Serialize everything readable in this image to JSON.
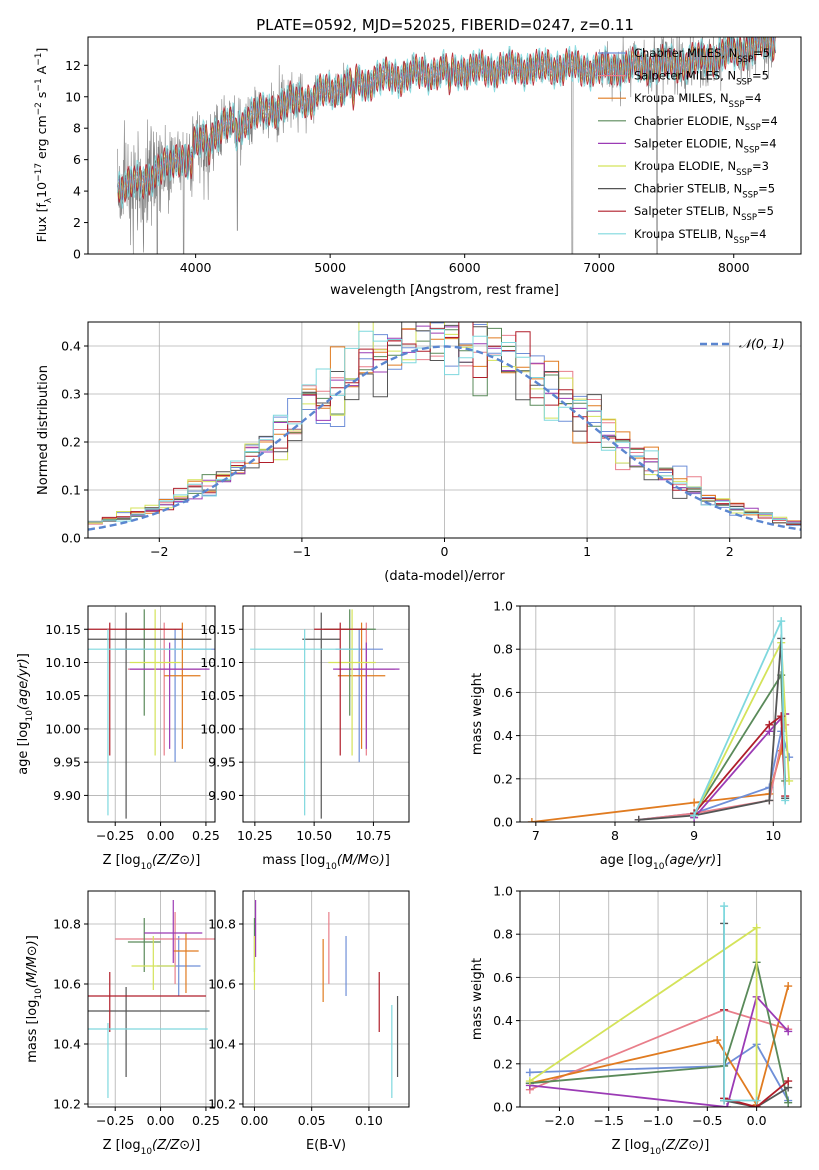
{
  "figure_title": "PLATE=0592, MJD=52025, FIBERID=0247, z=0.11",
  "colors": {
    "Chabrier MILES": "#6f8fd8",
    "Salpeter MILES": "#e87e8a",
    "Kroupa MILES": "#e07b20",
    "Chabrier ELODIE": "#5a8a5a",
    "Salpeter ELODIE": "#9b3bb5",
    "Kroupa ELODIE": "#d4e35a",
    "Chabrier STELIB": "#555555",
    "Salpeter STELIB": "#b01e2a",
    "Kroupa STELIB": "#7fd8de",
    "data": "#808080"
  },
  "chart_data": [
    {
      "id": "spectrum",
      "type": "line",
      "title": "PLATE=0592, MJD=52025, FIBERID=0247, z=0.11",
      "xlabel": "wavelength [Angstrom, rest frame]",
      "ylabel_parts": [
        "Flux [f",
        "λ",
        "10",
        "−17",
        " erg cm",
        "−2",
        " s",
        "−1",
        " A",
        "−1",
        "]"
      ],
      "xlim": [
        3200,
        8500
      ],
      "ylim": [
        0,
        13.8
      ],
      "xticks": [
        4000,
        5000,
        6000,
        7000,
        8000
      ],
      "yticks": [
        0,
        2,
        4,
        6,
        8,
        10,
        12
      ],
      "legend_position": "upper right",
      "legend": [
        {
          "model": "Chabrier MILES",
          "label": "Chabrier MILES, N",
          "sub": "SSP",
          "suffix": "=5"
        },
        {
          "model": "Salpeter MILES",
          "label": "Salpeter MILES, N",
          "sub": "SSP",
          "suffix": "=5"
        },
        {
          "model": "Kroupa MILES",
          "label": "Kroupa MILES, N",
          "sub": "SSP",
          "suffix": "=4"
        },
        {
          "model": "Chabrier ELODIE",
          "label": "Chabrier ELODIE, N",
          "sub": "SSP",
          "suffix": "=4"
        },
        {
          "model": "Salpeter ELODIE",
          "label": "Salpeter ELODIE, N",
          "sub": "SSP",
          "suffix": "=4"
        },
        {
          "model": "Kroupa ELODIE",
          "label": "Kroupa ELODIE, N",
          "sub": "SSP",
          "suffix": "=3"
        },
        {
          "model": "Chabrier STELIB",
          "label": "Chabrier STELIB, N",
          "sub": "SSP",
          "suffix": "=5"
        },
        {
          "model": "Salpeter STELIB",
          "label": "Salpeter STELIB, N",
          "sub": "SSP",
          "suffix": "=5"
        },
        {
          "model": "Kroupa STELIB",
          "label": "Kroupa STELIB, N",
          "sub": "SSP",
          "suffix": "=4"
        }
      ],
      "continuum": {
        "x": [
          3420,
          3500,
          3600,
          3700,
          3800,
          3900,
          4000,
          4100,
          4200,
          4300,
          4400,
          4500,
          4600,
          4700,
          4800,
          4900,
          5000,
          5200,
          5400,
          5600,
          5800,
          6000,
          6200,
          6400,
          6600,
          6800,
          7000,
          7200,
          7400,
          7600,
          7800,
          8000,
          8200,
          8300
        ],
        "y": [
          4.3,
          4.4,
          4.6,
          5.2,
          5.6,
          6.3,
          6.9,
          7.5,
          8.0,
          8.4,
          8.7,
          9.0,
          9.3,
          9.6,
          9.9,
          10.1,
          10.4,
          10.9,
          11.2,
          11.4,
          11.6,
          11.7,
          11.75,
          11.8,
          11.9,
          11.9,
          11.7,
          11.9,
          12.0,
          12.1,
          12.4,
          12.8,
          13.3,
          13.6
        ]
      }
    },
    {
      "id": "residuals",
      "type": "step",
      "xlabel": "(data-model)/error",
      "ylabel": "Normed distribution",
      "xlim": [
        -2.5,
        2.5
      ],
      "ylim": [
        0,
        0.45
      ],
      "xticks": [
        -2,
        -1,
        0,
        1,
        2
      ],
      "yticks": [
        0.0,
        0.1,
        0.2,
        0.3,
        0.4
      ],
      "grid": true,
      "bin_start": -2.5,
      "bin_width": 0.1,
      "legend_position": "upper right",
      "gaussian": {
        "label": "𝒩(0, 1)",
        "style": "dashed",
        "color": "#5b86d0"
      }
    },
    {
      "id": "age_vs_Z",
      "type": "errorbar",
      "xlabel": "Z [log10(Z/Z⊙)]",
      "ylabel": "age  [log10(age/yr)]",
      "xlim": [
        -0.4,
        0.3
      ],
      "ylim": [
        9.86,
        10.185
      ],
      "xticks": [
        -0.25,
        0.0,
        0.25
      ],
      "xticklabels": [
        "−0.25",
        "0.00",
        "0.25"
      ],
      "yticks": [
        9.9,
        9.95,
        10.0,
        10.05,
        10.1,
        10.15
      ],
      "yticklabels": [
        "9.90",
        "9.95",
        "10.00",
        "10.05",
        "10.10",
        "10.15"
      ],
      "grid": true,
      "points": [
        {
          "model": "Chabrier MILES",
          "x": 0.08,
          "xerr": 0.33,
          "y": 10.12,
          "yerr_lo": 0.17,
          "yerr_hi": 0.03
        },
        {
          "model": "Salpeter MILES",
          "x": 0.02,
          "xerr": 0.2,
          "y": 10.09,
          "yerr_lo": 0.13,
          "yerr_hi": 0.07
        },
        {
          "model": "Kroupa MILES",
          "x": 0.12,
          "xerr": 0.1,
          "y": 10.08,
          "yerr_lo": 0.11,
          "yerr_hi": 0.08
        },
        {
          "model": "Chabrier ELODIE",
          "x": -0.09,
          "xerr": 0.1,
          "y": 10.15,
          "yerr_lo": 0.13,
          "yerr_hi": 0.03
        },
        {
          "model": "Salpeter ELODIE",
          "x": 0.05,
          "xerr": 0.22,
          "y": 10.09,
          "yerr_lo": 0.12,
          "yerr_hi": 0.04
        },
        {
          "model": "Kroupa ELODIE",
          "x": -0.03,
          "xerr": 0.14,
          "y": 10.1,
          "yerr_lo": 0.14,
          "yerr_hi": 0.08
        },
        {
          "model": "Chabrier STELIB",
          "x": -0.19,
          "xerr": 0.47,
          "y": 10.135,
          "yerr_lo": 0.27,
          "yerr_hi": 0.04
        },
        {
          "model": "Salpeter STELIB",
          "x": -0.28,
          "xerr": 0.4,
          "y": 10.15,
          "yerr_lo": 0.19,
          "yerr_hi": 0.01
        },
        {
          "model": "Kroupa STELIB",
          "x": -0.29,
          "xerr": 0.57,
          "y": 10.12,
          "yerr_lo": 0.25,
          "yerr_hi": 0.03
        }
      ]
    },
    {
      "id": "age_vs_mass",
      "type": "errorbar",
      "xlabel": "mass [log10(M/M⊙)]",
      "xlim": [
        10.2,
        10.9
      ],
      "ylim": [
        9.86,
        10.185
      ],
      "xticks": [
        10.25,
        10.5,
        10.75
      ],
      "xticklabels": [
        "10.25",
        "10.50",
        "10.75"
      ],
      "yticks": [
        9.9,
        9.95,
        10.0,
        10.05,
        10.1,
        10.15
      ],
      "yticklabels": [
        "9.90",
        "9.95",
        "10.00",
        "10.05",
        "10.10",
        "10.15"
      ],
      "grid": true,
      "points": [
        {
          "model": "Chabrier MILES",
          "x": 10.69,
          "xerr": 0.1,
          "y": 10.12,
          "yerr_lo": 0.17,
          "yerr_hi": 0.03
        },
        {
          "model": "Salpeter MILES",
          "x": 10.72,
          "xerr": 0.12,
          "y": 10.09,
          "yerr_lo": 0.13,
          "yerr_hi": 0.07
        },
        {
          "model": "Kroupa MILES",
          "x": 10.7,
          "xerr": 0.1,
          "y": 10.08,
          "yerr_lo": 0.11,
          "yerr_hi": 0.08
        },
        {
          "model": "Chabrier ELODIE",
          "x": 10.65,
          "xerr": 0.11,
          "y": 10.15,
          "yerr_lo": 0.13,
          "yerr_hi": 0.03
        },
        {
          "model": "Salpeter ELODIE",
          "x": 10.72,
          "xerr": 0.14,
          "y": 10.09,
          "yerr_lo": 0.12,
          "yerr_hi": 0.04
        },
        {
          "model": "Kroupa ELODIE",
          "x": 10.66,
          "xerr": 0.1,
          "y": 10.1,
          "yerr_lo": 0.14,
          "yerr_hi": 0.08
        },
        {
          "model": "Chabrier STELIB",
          "x": 10.53,
          "xerr": 0.08,
          "y": 10.135,
          "yerr_lo": 0.27,
          "yerr_hi": 0.04
        },
        {
          "model": "Salpeter STELIB",
          "x": 10.61,
          "xerr": 0.11,
          "y": 10.15,
          "yerr_lo": 0.19,
          "yerr_hi": 0.01
        },
        {
          "model": "Kroupa STELIB",
          "x": 10.46,
          "xerr": 0.23,
          "y": 10.12,
          "yerr_lo": 0.25,
          "yerr_hi": 0.03
        }
      ]
    },
    {
      "id": "weight_vs_age",
      "type": "line",
      "xlabel": "age  [log10(age/yr)]",
      "ylabel": "mass weight",
      "xlim": [
        6.8,
        10.35
      ],
      "ylim": [
        0,
        1.0
      ],
      "xticks": [
        7,
        8,
        9,
        10
      ],
      "yticks": [
        0.0,
        0.2,
        0.4,
        0.6,
        0.8,
        1.0
      ],
      "grid": true,
      "series": [
        {
          "model": "Kroupa MILES",
          "x": [
            6.95,
            9.0,
            9.95,
            10.1,
            10.15
          ],
          "y": [
            0.0,
            0.09,
            0.13,
            0.33,
            0.5
          ]
        },
        {
          "model": "Chabrier MILES",
          "x": [
            8.3,
            9.0,
            9.95,
            10.1,
            10.2
          ],
          "y": [
            0.01,
            0.04,
            0.16,
            0.42,
            0.3
          ]
        },
        {
          "model": "Salpeter MILES",
          "x": [
            8.3,
            9.0,
            9.95,
            10.15
          ],
          "y": [
            0.01,
            0.04,
            0.1,
            0.45
          ]
        },
        {
          "model": "Chabrier ELODIE",
          "x": [
            9.0,
            10.1,
            10.15
          ],
          "y": [
            0.04,
            0.68,
            0.19
          ]
        },
        {
          "model": "Salpeter ELODIE",
          "x": [
            9.0,
            9.95,
            10.15
          ],
          "y": [
            0.02,
            0.42,
            0.5
          ]
        },
        {
          "model": "Kroupa ELODIE",
          "x": [
            9.0,
            10.1,
            10.2
          ],
          "y": [
            0.03,
            0.83,
            0.19
          ]
        },
        {
          "model": "Chabrier STELIB",
          "x": [
            8.3,
            9.0,
            9.95,
            10.1,
            10.15
          ],
          "y": [
            0.01,
            0.03,
            0.1,
            0.85,
            0.11
          ]
        },
        {
          "model": "Salpeter STELIB",
          "x": [
            9.0,
            9.95,
            10.1,
            10.15
          ],
          "y": [
            0.04,
            0.45,
            0.49,
            0.12
          ]
        },
        {
          "model": "Kroupa STELIB",
          "x": [
            9.0,
            10.1,
            10.15
          ],
          "y": [
            0.03,
            0.93,
            0.1
          ]
        }
      ]
    },
    {
      "id": "mass_vs_Z",
      "type": "errorbar",
      "xlabel": "Z [log10(Z/Z⊙)]",
      "ylabel": "mass [log10(M/M⊙)]",
      "xlim": [
        -0.4,
        0.3
      ],
      "ylim": [
        10.19,
        10.91
      ],
      "xticks": [
        -0.25,
        0.0,
        0.25
      ],
      "xticklabels": [
        "−0.25",
        "0.00",
        "0.25"
      ],
      "yticks": [
        10.2,
        10.4,
        10.6,
        10.8
      ],
      "yticklabels": [
        "10.2",
        "10.4",
        "10.6",
        "10.8"
      ],
      "grid": true,
      "points": [
        {
          "model": "Chabrier MILES",
          "x": 0.1,
          "xerr": 0.12,
          "y": 10.66,
          "yerr_lo": 0.1,
          "yerr_hi": 0.1
        },
        {
          "model": "Salpeter MILES",
          "x": 0.08,
          "xerr": 0.33,
          "y": 10.75,
          "yerr_lo": 0.15,
          "yerr_hi": 0.09
        },
        {
          "model": "Kroupa MILES",
          "x": 0.14,
          "xerr": 0.07,
          "y": 10.71,
          "yerr_lo": 0.14,
          "yerr_hi": 0.06
        },
        {
          "model": "Chabrier ELODIE",
          "x": -0.09,
          "xerr": 0.09,
          "y": 10.74,
          "yerr_lo": 0.1,
          "yerr_hi": 0.08
        },
        {
          "model": "Salpeter ELODIE",
          "x": 0.07,
          "xerr": 0.16,
          "y": 10.77,
          "yerr_lo": 0.1,
          "yerr_hi": 0.11
        },
        {
          "model": "Kroupa ELODIE",
          "x": -0.04,
          "xerr": 0.12,
          "y": 10.66,
          "yerr_lo": 0.08,
          "yerr_hi": 0.1
        },
        {
          "model": "Chabrier STELIB",
          "x": -0.19,
          "xerr": 0.46,
          "y": 10.51,
          "yerr_lo": 0.22,
          "yerr_hi": 0.08
        },
        {
          "model": "Salpeter STELIB",
          "x": -0.28,
          "xerr": 0.53,
          "y": 10.56,
          "yerr_lo": 0.12,
          "yerr_hi": 0.08
        },
        {
          "model": "Kroupa STELIB",
          "x": -0.29,
          "xerr": 0.55,
          "y": 10.45,
          "yerr_lo": 0.23,
          "yerr_hi": 0.02
        }
      ]
    },
    {
      "id": "mass_vs_EBV",
      "type": "errorbar",
      "xlabel": "E(B-V)",
      "xlim": [
        -0.01,
        0.135
      ],
      "ylim": [
        10.19,
        10.91
      ],
      "xticks": [
        0.0,
        0.05,
        0.1
      ],
      "xticklabels": [
        "0.00",
        "0.05",
        "0.10"
      ],
      "yticks": [
        10.2,
        10.4,
        10.6,
        10.8
      ],
      "yticklabels": [
        "10.2",
        "10.4",
        "10.6",
        "10.8"
      ],
      "grid": true,
      "points": [
        {
          "model": "Chabrier MILES",
          "x": 0.08,
          "y": 10.66,
          "yerr_lo": 0.1,
          "yerr_hi": 0.1
        },
        {
          "model": "Salpeter MILES",
          "x": 0.065,
          "y": 10.75,
          "yerr_lo": 0.15,
          "yerr_hi": 0.09
        },
        {
          "model": "Kroupa MILES",
          "x": 0.06,
          "y": 10.65,
          "yerr_lo": 0.11,
          "yerr_hi": 0.1
        },
        {
          "model": "Chabrier ELODIE",
          "x": 0.0,
          "y": 10.74,
          "yerr_lo": 0.1,
          "yerr_hi": 0.08
        },
        {
          "model": "Salpeter ELODIE",
          "x": 0.001,
          "y": 10.79,
          "yerr_lo": 0.1,
          "yerr_hi": 0.09
        },
        {
          "model": "Kroupa ELODIE",
          "x": 0.0,
          "y": 10.66,
          "yerr_lo": 0.08,
          "yerr_hi": 0.1
        },
        {
          "model": "Chabrier STELIB",
          "x": 0.125,
          "y": 10.43,
          "yerr_lo": 0.14,
          "yerr_hi": 0.13
        },
        {
          "model": "Salpeter STELIB",
          "x": 0.109,
          "y": 10.54,
          "yerr_lo": 0.1,
          "yerr_hi": 0.1
        },
        {
          "model": "Kroupa STELIB",
          "x": 0.12,
          "y": 10.38,
          "yerr_lo": 0.16,
          "yerr_hi": 0.15
        }
      ]
    },
    {
      "id": "weight_vs_Z",
      "type": "line",
      "xlabel": "Z [log10(Z/Z⊙)]",
      "ylabel": "mass weight",
      "xlim": [
        -2.4,
        0.45
      ],
      "ylim": [
        0,
        1.0
      ],
      "xticks": [
        -2.0,
        -1.5,
        -1.0,
        -0.5,
        0.0
      ],
      "xticklabels": [
        "−2.0",
        "−1.5",
        "−1.0",
        "−0.5",
        "0.0"
      ],
      "yticks": [
        0.0,
        0.2,
        0.4,
        0.6,
        0.8,
        1.0
      ],
      "grid": true,
      "series": [
        {
          "model": "Chabrier MILES",
          "x": [
            -2.3,
            -0.33,
            0.0,
            0.32
          ],
          "y": [
            0.16,
            0.19,
            0.29,
            0.03
          ]
        },
        {
          "model": "Salpeter MILES",
          "x": [
            -2.3,
            -0.33,
            0.32
          ],
          "y": [
            0.08,
            0.45,
            0.36
          ]
        },
        {
          "model": "Kroupa MILES",
          "x": [
            -2.3,
            -0.4,
            0.0,
            0.32
          ],
          "y": [
            0.11,
            0.31,
            0.01,
            0.56
          ]
        },
        {
          "model": "Chabrier ELODIE",
          "x": [
            -2.3,
            -0.33,
            0.0,
            0.32
          ],
          "y": [
            0.11,
            0.19,
            0.67,
            0.02
          ]
        },
        {
          "model": "Salpeter ELODIE",
          "x": [
            -2.3,
            -0.3,
            0.0,
            0.32
          ],
          "y": [
            0.1,
            0.0,
            0.51,
            0.35
          ]
        },
        {
          "model": "Kroupa ELODIE",
          "x": [
            -2.3,
            0.0,
            0.0
          ],
          "y": [
            0.12,
            0.83,
            0.0
          ]
        },
        {
          "model": "Chabrier STELIB",
          "x": [
            -0.33,
            -0.33,
            0.0,
            0.32
          ],
          "y": [
            0.85,
            0.03,
            0.0,
            0.09
          ]
        },
        {
          "model": "Salpeter STELIB",
          "x": [
            -0.33,
            -0.33,
            0.0,
            0.32
          ],
          "y": [
            0.45,
            0.04,
            0.0,
            0.12
          ]
        },
        {
          "model": "Kroupa STELIB",
          "x": [
            -0.33,
            -0.33,
            0.0
          ],
          "y": [
            0.93,
            0.03,
            0.03
          ]
        }
      ]
    }
  ]
}
